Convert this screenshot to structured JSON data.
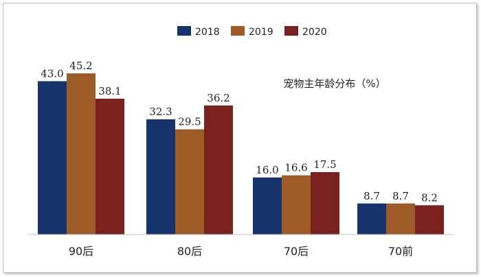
{
  "chart_data": {
    "type": "bar",
    "title": "宠物主年龄分布（%）",
    "categories": [
      "90后",
      "80后",
      "70后",
      "70前"
    ],
    "series": [
      {
        "name": "2018",
        "color": "#17336b",
        "values": [
          43.0,
          32.3,
          16.0,
          8.7
        ]
      },
      {
        "name": "2019",
        "color": "#9c5b27",
        "values": [
          45.2,
          29.5,
          16.6,
          8.7
        ]
      },
      {
        "name": "2020",
        "color": "#7a2220",
        "values": [
          38.1,
          36.2,
          17.5,
          8.2
        ]
      }
    ],
    "xlabel": "",
    "ylabel": "",
    "ylim": [
      0,
      50
    ],
    "grid": false,
    "legend_position": "top-center"
  }
}
